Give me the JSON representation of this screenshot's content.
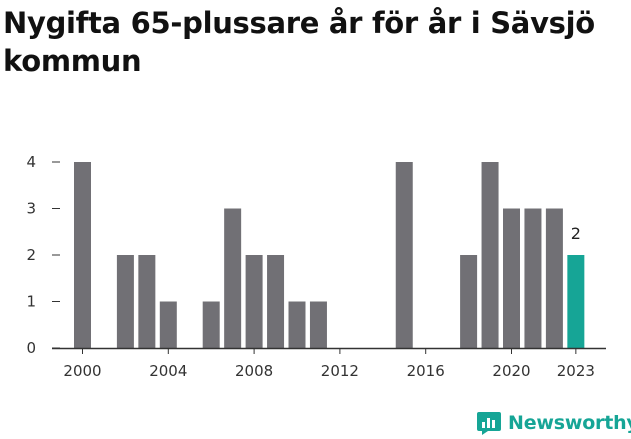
{
  "header": {
    "title": "Nygifta 65-plussare år för år i Sävsjö kommun"
  },
  "brand": {
    "name": "Newsworthy"
  },
  "colors": {
    "bar": "#717075",
    "highlight": "#16a596",
    "axis": "#333333",
    "grid": "#dddddd"
  },
  "chart_data": {
    "type": "bar",
    "title": "Nygifta 65-plussare år för år i Sävsjö kommun",
    "xlabel": "",
    "ylabel": "",
    "x": [
      2000,
      2001,
      2002,
      2003,
      2004,
      2005,
      2006,
      2007,
      2008,
      2009,
      2010,
      2011,
      2012,
      2013,
      2014,
      2015,
      2016,
      2017,
      2018,
      2019,
      2020,
      2021,
      2022,
      2023
    ],
    "values": [
      4,
      0,
      2,
      2,
      1,
      0,
      1,
      3,
      2,
      2,
      1,
      1,
      0,
      0,
      0,
      4,
      0,
      0,
      2,
      4,
      3,
      3,
      3,
      2
    ],
    "highlight": {
      "x": 2023,
      "value": 2,
      "label": "2"
    },
    "ylim": [
      0,
      4
    ],
    "yticks": [
      0,
      1,
      2,
      3,
      4
    ],
    "xticks": [
      2000,
      2004,
      2008,
      2012,
      2016,
      2020,
      2023
    ],
    "grid": false
  }
}
